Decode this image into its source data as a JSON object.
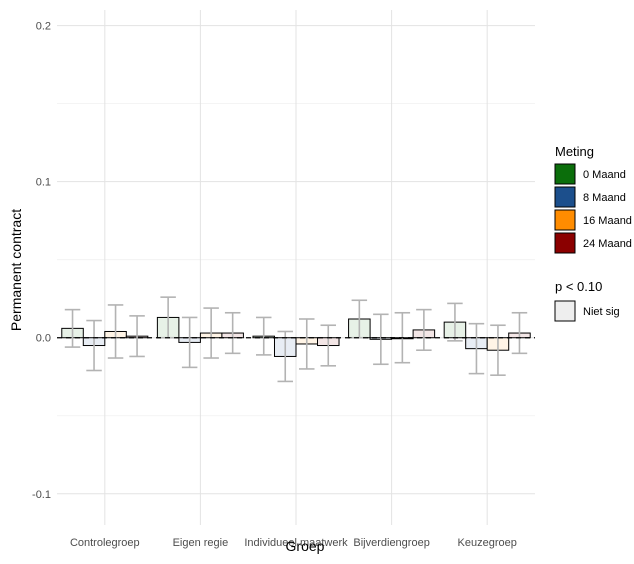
{
  "chart_data": {
    "type": "bar",
    "xlabel": "Groep",
    "ylabel": "Permanent contract",
    "ylim": [
      -0.12,
      0.21
    ],
    "yticks": [
      -0.1,
      0.0,
      0.1,
      0.2
    ],
    "ytick_labels": [
      "-0.1",
      "0.0",
      "0.1",
      "0.2"
    ],
    "reference_line": 0,
    "grid": true,
    "categories": [
      "Controlegroep",
      "Eigen regie",
      "Individueel maatwerk",
      "Bijverdiengroep",
      "Keuzegroep"
    ],
    "series": [
      {
        "name": "0 Maand",
        "color": "#0b6e0b",
        "values": [
          0.006,
          0.013,
          0.001,
          0.012,
          0.01
        ],
        "lower": [
          -0.006,
          0.0,
          -0.011,
          0.0,
          -0.002
        ],
        "upper": [
          0.018,
          0.026,
          0.013,
          0.024,
          0.022
        ]
      },
      {
        "name": "8 Maand",
        "color": "#1c4f8c",
        "values": [
          -0.005,
          -0.003,
          -0.012,
          -0.001,
          -0.007
        ],
        "lower": [
          -0.021,
          -0.019,
          -0.028,
          -0.017,
          -0.023
        ],
        "upper": [
          0.011,
          0.013,
          0.004,
          0.015,
          0.009
        ]
      },
      {
        "name": "16 Maand",
        "color": "#ff8c00",
        "values": [
          0.004,
          0.003,
          -0.004,
          0.0,
          -0.008
        ],
        "lower": [
          -0.013,
          -0.013,
          -0.02,
          -0.016,
          -0.024
        ],
        "upper": [
          0.021,
          0.019,
          0.012,
          0.016,
          0.008
        ]
      },
      {
        "name": "24 Maand",
        "color": "#8b0000",
        "values": [
          0.001,
          0.003,
          -0.005,
          0.005,
          0.003
        ],
        "lower": [
          -0.012,
          -0.01,
          -0.018,
          -0.008,
          -0.01
        ],
        "upper": [
          0.014,
          0.016,
          0.008,
          0.018,
          0.016
        ]
      }
    ],
    "legend": {
      "placement": "right",
      "title": "Meting",
      "items": [
        "0 Maand",
        "8 Maand",
        "16 Maand",
        "24 Maand"
      ],
      "sig_title": "p < 0.10",
      "sig_items": [
        "Niet sig"
      ]
    }
  }
}
